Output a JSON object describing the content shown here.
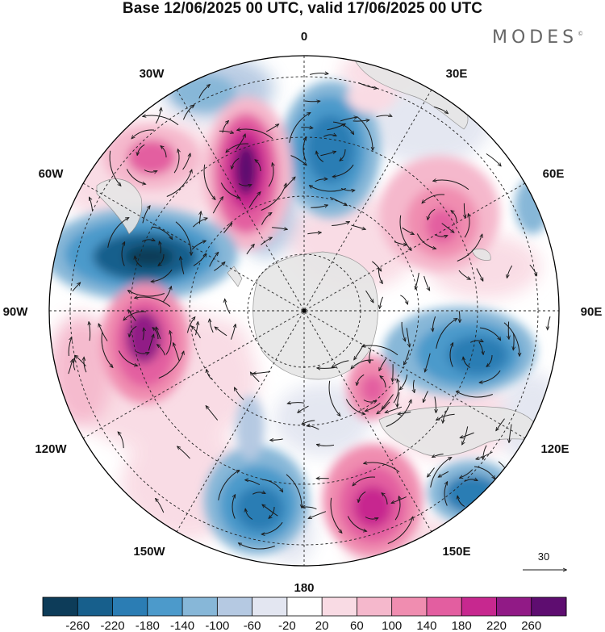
{
  "title": "Base 12/06/2025 00 UTC, valid 17/06/2025 00 UTC",
  "brand": "MODES",
  "brand_mark": "©",
  "meridian_labels": {
    "m0": "0",
    "m30e": "30E",
    "m60e": "60E",
    "m90e": "90E",
    "m120e": "120E",
    "m150e": "150E",
    "m180": "180",
    "m150w": "150W",
    "m120w": "120W",
    "m90w": "90W",
    "m60w": "60W",
    "m30w": "30W"
  },
  "vector_reference": {
    "value": "30"
  },
  "colorbar": {
    "ticks": [
      "-260",
      "-220",
      "-180",
      "-140",
      "-100",
      "-60",
      "-20",
      "20",
      "60",
      "100",
      "140",
      "180",
      "220",
      "260"
    ],
    "colors": [
      "#0d3c59",
      "#175f8c",
      "#2b7db4",
      "#4c9acb",
      "#87b7d8",
      "#b5c9e2",
      "#e3e6f1",
      "#ffffff",
      "#f9dbe4",
      "#f5b8cc",
      "#f08db0",
      "#e35ea0",
      "#c7288f",
      "#911a86",
      "#5e0d70"
    ]
  },
  "colors": {
    "land": "#e6e6e6",
    "ocean": "#ffffff",
    "grid": "#222222",
    "arrow": "#1a1a1a"
  }
}
